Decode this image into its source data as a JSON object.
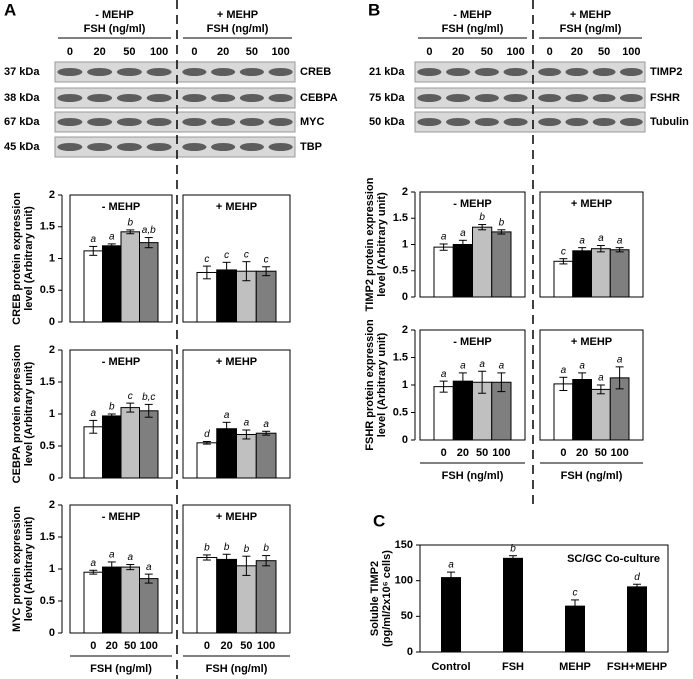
{
  "panels": [
    "A",
    "B",
    "C"
  ],
  "blots": [
    {
      "header": [
        {
          "label": "- MEHP",
          "axis": "FSH (ng/ml)",
          "doses": [
            "0",
            "20",
            "50",
            "100"
          ]
        },
        {
          "label": "+ MEHP",
          "axis": "FSH (ng/ml)",
          "doses": [
            "0",
            "20",
            "50",
            "100"
          ]
        }
      ],
      "rows": [
        {
          "size": "37 kDa",
          "protein": "CREB"
        },
        {
          "size": "38 kDa",
          "protein": "CEBPA"
        },
        {
          "size": "67 kDa",
          "protein": "MYC"
        },
        {
          "size": "45 kDa",
          "protein": "TBP"
        }
      ]
    },
    {
      "header": [
        {
          "label": "- MEHP",
          "axis": "FSH (ng/ml)",
          "doses": [
            "0",
            "20",
            "50",
            "100"
          ]
        },
        {
          "label": "+ MEHP",
          "axis": "FSH (ng/ml)",
          "doses": [
            "0",
            "20",
            "50",
            "100"
          ]
        }
      ],
      "rows": [
        {
          "size": "21 kDa",
          "protein": "TIMP2"
        },
        {
          "size": "75 kDa",
          "protein": "FSHR"
        },
        {
          "size": "50 kDa",
          "protein": "Tubulin"
        }
      ]
    }
  ],
  "chart_data": [
    {
      "type": "grouped_bar",
      "ylabel": [
        "CREB protein expression",
        "level (Arbitrary unit)"
      ],
      "colors": [
        "#ffffff",
        "#000000",
        "#c0c0c0",
        "#7f7f7f"
      ],
      "ylim": [
        0,
        2
      ],
      "yticks": [
        0,
        0.5,
        1,
        1.5,
        2
      ],
      "series": [
        {
          "name": "- MEHP",
          "values": [
            1.12,
            1.2,
            1.42,
            1.25
          ],
          "errors": [
            0.07,
            0.03,
            0.03,
            0.08
          ],
          "letters": [
            "a",
            "a",
            "b",
            "a,b"
          ]
        },
        {
          "name": "+ MEHP",
          "values": [
            0.78,
            0.82,
            0.8,
            0.8
          ],
          "errors": [
            0.1,
            0.12,
            0.15,
            0.07
          ],
          "letters": [
            "c",
            "c",
            "c",
            "c"
          ]
        }
      ]
    },
    {
      "type": "grouped_bar",
      "ylabel": [
        "CEBPA protein expression",
        "level (Arbitrary unit)"
      ],
      "colors": [
        "#ffffff",
        "#000000",
        "#c0c0c0",
        "#7f7f7f"
      ],
      "ylim": [
        0,
        2
      ],
      "yticks": [
        0,
        0.5,
        1,
        1.5,
        2
      ],
      "series": [
        {
          "name": "- MEHP",
          "values": [
            0.8,
            0.97,
            1.1,
            1.05
          ],
          "errors": [
            0.1,
            0.03,
            0.07,
            0.1
          ],
          "letters": [
            "a",
            "b",
            "c",
            "b,c"
          ]
        },
        {
          "name": "+ MEHP",
          "values": [
            0.55,
            0.77,
            0.68,
            0.7
          ],
          "errors": [
            0.02,
            0.1,
            0.07,
            0.03
          ],
          "letters": [
            "d",
            "a",
            "a",
            "a"
          ]
        }
      ]
    },
    {
      "type": "grouped_bar",
      "ylabel": [
        "MYC protein expression",
        "level (Arbitrary unit)"
      ],
      "categories": [
        "0",
        "20",
        "50",
        "100"
      ],
      "xlabel": "FSH (ng/ml)",
      "colors": [
        "#ffffff",
        "#000000",
        "#c0c0c0",
        "#7f7f7f"
      ],
      "ylim": [
        0,
        2
      ],
      "yticks": [
        0,
        0.5,
        1,
        1.5,
        2
      ],
      "series": [
        {
          "name": "- MEHP",
          "values": [
            0.95,
            1.03,
            1.03,
            0.85
          ],
          "errors": [
            0.03,
            0.08,
            0.04,
            0.07
          ],
          "letters": [
            "a",
            "a",
            "a",
            "a"
          ]
        },
        {
          "name": "+ MEHP",
          "values": [
            1.18,
            1.15,
            1.05,
            1.13
          ],
          "errors": [
            0.04,
            0.08,
            0.15,
            0.08
          ],
          "letters": [
            "b",
            "b",
            "b",
            "b"
          ]
        }
      ]
    },
    {
      "type": "grouped_bar",
      "ylabel": [
        "TIMP2 protein expression",
        "level (Arbitrary unit)"
      ],
      "colors": [
        "#ffffff",
        "#000000",
        "#c0c0c0",
        "#7f7f7f"
      ],
      "ylim": [
        0,
        2
      ],
      "yticks": [
        0,
        0.5,
        1,
        1.5,
        2
      ],
      "series": [
        {
          "name": "- MEHP",
          "values": [
            0.95,
            1.0,
            1.33,
            1.24
          ],
          "errors": [
            0.06,
            0.08,
            0.05,
            0.04
          ],
          "letters": [
            "a",
            "a",
            "b",
            "b"
          ]
        },
        {
          "name": "+ MEHP",
          "values": [
            0.68,
            0.88,
            0.92,
            0.9
          ],
          "errors": [
            0.05,
            0.06,
            0.06,
            0.04
          ],
          "letters": [
            "c",
            "a",
            "a",
            "a"
          ]
        }
      ]
    },
    {
      "type": "grouped_bar",
      "ylabel": [
        "FSHR protein expression",
        "level (Arbitrary unit)"
      ],
      "categories": [
        "0",
        "20",
        "50",
        "100"
      ],
      "xlabel": "FSH (ng/ml)",
      "colors": [
        "#ffffff",
        "#000000",
        "#c0c0c0",
        "#7f7f7f"
      ],
      "ylim": [
        0,
        2
      ],
      "yticks": [
        0,
        0.5,
        1,
        1.5,
        2
      ],
      "series": [
        {
          "name": "- MEHP",
          "values": [
            0.97,
            1.07,
            1.05,
            1.05
          ],
          "errors": [
            0.1,
            0.15,
            0.2,
            0.17
          ],
          "letters": [
            "a",
            "a",
            "a",
            "a"
          ]
        },
        {
          "name": "+ MEHP",
          "values": [
            1.02,
            1.1,
            0.92,
            1.13
          ],
          "errors": [
            0.12,
            0.12,
            0.08,
            0.2
          ],
          "letters": [
            "a",
            "a",
            "a",
            "a"
          ]
        }
      ]
    },
    {
      "type": "bar",
      "title": "SC/GC Co-culture",
      "ylabel": [
        "Soluble TIMP2",
        "(pg/ml/2x10⁶ cells)"
      ],
      "categories": [
        "Control",
        "FSH",
        "MEHP",
        "FSH+MEHP"
      ],
      "values": [
        105,
        132,
        65,
        92
      ],
      "errors": [
        7,
        3,
        8,
        3
      ],
      "letters": [
        "a",
        "b",
        "c",
        "d"
      ],
      "color": "#000000",
      "ylim": [
        0,
        150
      ],
      "yticks": [
        0,
        50,
        100,
        150
      ]
    }
  ]
}
